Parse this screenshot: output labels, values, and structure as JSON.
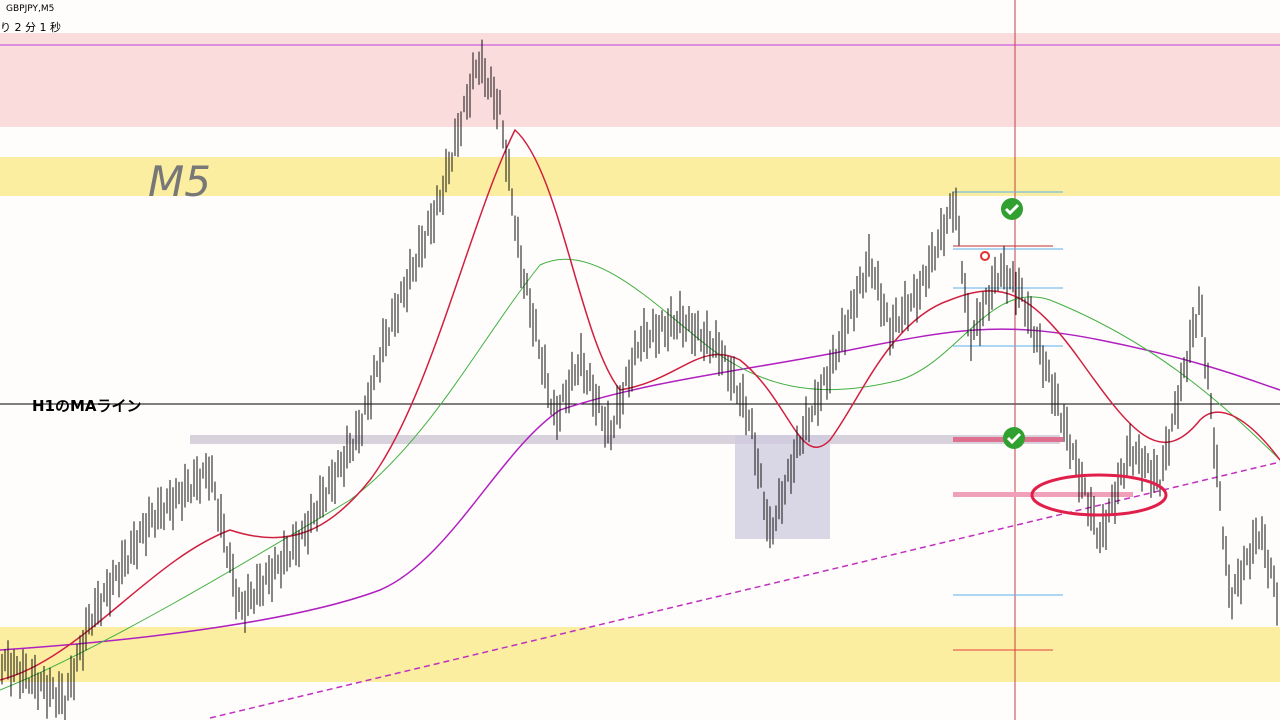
{
  "header": {
    "symbol": "GBPJPY,M5",
    "timer": "り 2 分 1 秒"
  },
  "annotations": {
    "timeframe": "M5",
    "ma_line": "H1のMAライン"
  }
}
